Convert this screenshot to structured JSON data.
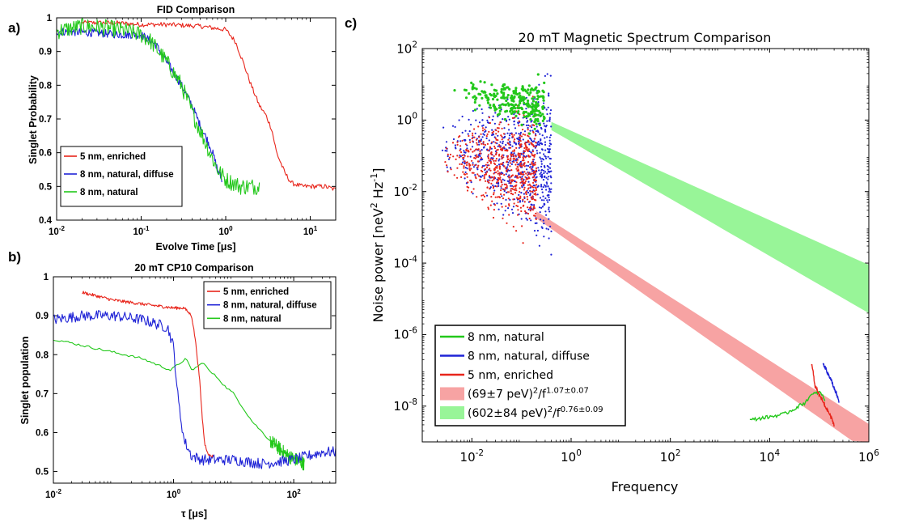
{
  "chart_data": [
    {
      "id": "a",
      "type": "line",
      "panel_label": "a)",
      "title": "FID Comparison",
      "xlabel": "Evolve Time [μs]",
      "ylabel": "Singlet Probability",
      "xscale": "log",
      "xlim": [
        0.01,
        20
      ],
      "ylim": [
        0.4,
        1.0
      ],
      "xticks": [
        {
          "v": 0.01,
          "b": "10",
          "e": "-2"
        },
        {
          "v": 0.1,
          "b": "10",
          "e": "-1"
        },
        {
          "v": 1,
          "b": "10",
          "e": "0"
        },
        {
          "v": 10,
          "b": "10",
          "e": "1"
        }
      ],
      "yticks": [
        {
          "v": 0.4,
          "t": "0.4"
        },
        {
          "v": 0.5,
          "t": "0.5"
        },
        {
          "v": 0.6,
          "t": "0.6"
        },
        {
          "v": 0.7,
          "t": "0.7"
        },
        {
          "v": 0.8,
          "t": "0.8"
        },
        {
          "v": 0.9,
          "t": "0.9"
        },
        {
          "v": 1.0,
          "t": "1"
        }
      ],
      "legend_position": "bottom-left",
      "series": [
        {
          "name": "5 nm, enriched",
          "color": "#e8251b",
          "noise": 0.007,
          "x": [
            0.02,
            0.05,
            0.1,
            0.2,
            0.5,
            1,
            1.3,
            1.6,
            2,
            2.5,
            3,
            3.5,
            4,
            5,
            6,
            8,
            10,
            15,
            20
          ],
          "y": [
            0.985,
            0.985,
            0.98,
            0.98,
            0.975,
            0.965,
            0.93,
            0.87,
            0.8,
            0.74,
            0.71,
            0.67,
            0.6,
            0.54,
            0.51,
            0.5,
            0.5,
            0.5,
            0.49
          ]
        },
        {
          "name": "8 nm, natural, diffuse",
          "color": "#1f23d6",
          "noise": 0.012,
          "x": [
            0.01,
            0.03,
            0.06,
            0.1,
            0.15,
            0.2,
            0.3,
            0.4,
            0.5,
            0.6,
            0.7,
            0.8,
            0.9
          ],
          "y": [
            0.96,
            0.955,
            0.95,
            0.95,
            0.92,
            0.87,
            0.8,
            0.74,
            0.68,
            0.64,
            0.6,
            0.55,
            0.52
          ]
        },
        {
          "name": "8 nm, natural",
          "color": "#22c81a",
          "noise": 0.025,
          "x": [
            0.01,
            0.02,
            0.04,
            0.07,
            0.1,
            0.13,
            0.2,
            0.3,
            0.4,
            0.6,
            0.8,
            1,
            1.5,
            2,
            2.5
          ],
          "y": [
            0.96,
            0.975,
            0.97,
            0.96,
            0.95,
            0.93,
            0.87,
            0.8,
            0.72,
            0.62,
            0.55,
            0.52,
            0.5,
            0.5,
            0.5
          ]
        }
      ]
    },
    {
      "id": "b",
      "type": "line",
      "panel_label": "b)",
      "title": "20 mT CP10 Comparison",
      "xlabel": "τ [μs]",
      "ylabel": "Singlet population",
      "xscale": "log",
      "xlim": [
        0.01,
        500
      ],
      "ylim": [
        0.47,
        1.0
      ],
      "xticks": [
        {
          "v": 0.01,
          "b": "10",
          "e": "-2"
        },
        {
          "v": 1,
          "b": "10",
          "e": "0"
        },
        {
          "v": 100,
          "b": "10",
          "e": "2"
        }
      ],
      "yticks": [
        {
          "v": 0.5,
          "t": "0.5"
        },
        {
          "v": 0.6,
          "t": "0.6"
        },
        {
          "v": 0.7,
          "t": "0.7"
        },
        {
          "v": 0.8,
          "t": "0.8"
        },
        {
          "v": 0.9,
          "t": "0.9"
        },
        {
          "v": 1.0,
          "t": "1"
        }
      ],
      "legend_position": "top-right",
      "series": [
        {
          "name": "5 nm, enriched",
          "color": "#e8251b",
          "noise": 0.004,
          "x": [
            0.03,
            0.1,
            0.3,
            1,
            1.5,
            2,
            2.3,
            2.7,
            3,
            3.3,
            3.7,
            4,
            4.5
          ],
          "y": [
            0.96,
            0.94,
            0.93,
            0.92,
            0.92,
            0.9,
            0.84,
            0.74,
            0.64,
            0.57,
            0.55,
            0.54,
            0.54
          ]
        },
        {
          "name": "8 nm, natural, diffuse",
          "color": "#1f23d6",
          "noise": 0.014,
          "x": [
            0.01,
            0.03,
            0.1,
            0.3,
            0.8,
            1,
            1.2,
            1.5,
            2,
            3,
            10,
            30,
            100,
            300,
            500
          ],
          "y": [
            0.89,
            0.9,
            0.9,
            0.89,
            0.87,
            0.82,
            0.68,
            0.58,
            0.54,
            0.53,
            0.53,
            0.52,
            0.53,
            0.55,
            0.55
          ]
        },
        {
          "name": "8 nm, natural",
          "color": "#22c81a",
          "noise": 0.003,
          "x": [
            0.01,
            0.3,
            0.9,
            1.6,
            2,
            3.2,
            3.8,
            5.5,
            7,
            10,
            20,
            40,
            80,
            150
          ],
          "y": [
            0.84,
            0.79,
            0.76,
            0.79,
            0.76,
            0.78,
            0.76,
            0.74,
            0.72,
            0.7,
            0.63,
            0.58,
            0.54,
            0.52
          ]
        }
      ]
    },
    {
      "id": "c",
      "type": "scatter",
      "panel_label": "c)",
      "title": "20 mT Magnetic Spectrum Comparison",
      "xlabel": "Frequency",
      "ylabel": "Noise power [neV² Hz⁻¹]",
      "ylabel_parts": {
        "pre": "Noise power [neV",
        "sup1": "2",
        "mid": " Hz",
        "sup2": "-1",
        "post": "]"
      },
      "xscale": "log",
      "yscale": "log",
      "xlim": [
        0.001,
        1000000
      ],
      "ylim": [
        1e-09,
        100
      ],
      "xticks": [
        {
          "v": 0.01,
          "b": "10",
          "e": "-2"
        },
        {
          "v": 1,
          "b": "10",
          "e": "0"
        },
        {
          "v": 100,
          "b": "10",
          "e": "2"
        },
        {
          "v": 10000,
          "b": "10",
          "e": "4"
        },
        {
          "v": 1000000,
          "b": "10",
          "e": "6"
        }
      ],
      "yticks": [
        {
          "v": 1e-08,
          "b": "10",
          "e": "-8"
        },
        {
          "v": 1e-06,
          "b": "10",
          "e": "-6"
        },
        {
          "v": 0.0001,
          "b": "10",
          "e": "-4"
        },
        {
          "v": 0.01,
          "b": "10",
          "e": "-2"
        },
        {
          "v": 1,
          "b": "10",
          "e": "0"
        },
        {
          "v": 100,
          "b": "10",
          "e": "2"
        }
      ],
      "legend_position": "bottom-left",
      "scatter_series": [
        {
          "name": "8 nm, natural, diffuse",
          "color": "#1f23d6",
          "x_range": [
            0.002,
            0.4
          ],
          "log10y_range": [
            -3.9,
            1.7
          ]
        },
        {
          "name": "5 nm, enriched",
          "color": "#e8251b",
          "x_range": [
            0.002,
            0.2
          ],
          "log10y_range": [
            -3.6,
            1.0
          ]
        },
        {
          "name": "8 nm, natural",
          "color": "#22c81a",
          "x_range": [
            0.003,
            0.3
          ],
          "log10y_range": [
            -0.4,
            1.4
          ]
        }
      ],
      "lines": [
        {
          "name": "8 nm, natural",
          "color": "#22c81a",
          "x": [
            4000,
            6000,
            10000,
            20000,
            30000,
            50000,
            70000,
            100000,
            130000
          ],
          "y": [
            4e-09,
            4.5e-09,
            5e-09,
            6e-09,
            8e-09,
            1.2e-08,
            2e-08,
            2.5e-08,
            1.5e-08
          ]
        },
        {
          "name": "8 nm, natural, diffuse",
          "color": "#1f23d6",
          "x": [
            120000,
            150000,
            200000,
            250000
          ],
          "y": [
            1.5e-07,
            8e-08,
            3e-08,
            1.3e-08
          ]
        },
        {
          "name": "5 nm, enriched",
          "color": "#e8251b",
          "x": [
            70000,
            80000,
            100000,
            130000,
            170000,
            200000
          ],
          "y": [
            1.5e-07,
            4e-08,
            2e-08,
            1e-08,
            5e-09,
            3e-09
          ]
        }
      ],
      "bands": [
        {
          "name": "(69±7 peV)²/f^(1.07±0.07)",
          "color": "#f7a3a3",
          "x_range": [
            0.2,
            1000000
          ],
          "log10y_lower": {
            "a": -2.75,
            "b": -9.3
          },
          "log10y_upper": {
            "a": -2.55,
            "b": -8.5
          }
        },
        {
          "name": "(602±84 peV)²/f^(0.76±0.09)",
          "color": "#98f598",
          "x_range": [
            0.4,
            1000000
          ],
          "log10y_lower": {
            "a": -0.28,
            "b": -5.4
          },
          "log10y_upper": {
            "a": -0.05,
            "b": -4.05
          }
        }
      ],
      "legend_entries": [
        {
          "kind": "line",
          "color": "#22c81a",
          "text": "8 nm, natural"
        },
        {
          "kind": "line",
          "color": "#1f23d6",
          "text": "8 nm, natural, diffuse"
        },
        {
          "kind": "line",
          "color": "#e8251b",
          "text": "5 nm, enriched"
        },
        {
          "kind": "patch",
          "color": "#f7a3a3",
          "pre": "(69±7 peV)",
          "s1": "2",
          "mid": "/f",
          "s2": "1.07±0.07"
        },
        {
          "kind": "patch",
          "color": "#98f598",
          "pre": "(602±84 peV)",
          "s1": "2",
          "mid": "/f",
          "s2": "0.76±0.09"
        }
      ]
    }
  ]
}
